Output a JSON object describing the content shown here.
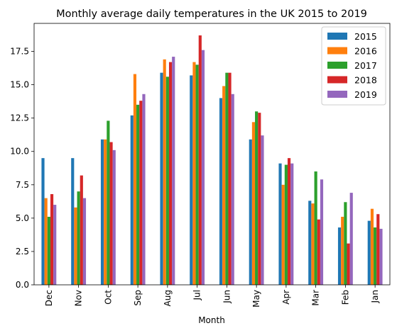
{
  "chart_data": {
    "type": "bar",
    "title": "Monthly average daily temperatures in the UK 2015 to 2019",
    "xlabel": "Month",
    "ylabel": "",
    "ylim": [
      0,
      19.6
    ],
    "yticks": [
      "0.0",
      "2.5",
      "5.0",
      "7.5",
      "10.0",
      "12.5",
      "15.0",
      "17.5"
    ],
    "grid": false,
    "legend_position": "top-right",
    "categories": [
      "Dec",
      "Nov",
      "Oct",
      "Sep",
      "Aug",
      "Jul",
      "Jun",
      "May",
      "Apr",
      "Mar",
      "Feb",
      "Jan"
    ],
    "series": [
      {
        "name": "2015",
        "color": "#1f77b4",
        "values": [
          9.5,
          9.5,
          10.9,
          12.7,
          15.9,
          15.7,
          14.0,
          10.9,
          9.1,
          6.3,
          4.3,
          4.8
        ]
      },
      {
        "name": "2016",
        "color": "#ff7f0e",
        "values": [
          6.5,
          5.8,
          10.9,
          15.8,
          16.9,
          16.7,
          14.9,
          12.2,
          7.5,
          6.1,
          5.1,
          5.7
        ]
      },
      {
        "name": "2017",
        "color": "#2ca02c",
        "values": [
          5.1,
          7.0,
          12.3,
          13.5,
          15.6,
          16.5,
          15.9,
          13.0,
          9.0,
          8.5,
          6.2,
          4.3
        ]
      },
      {
        "name": "2018",
        "color": "#d62728",
        "values": [
          6.8,
          8.2,
          10.7,
          13.8,
          16.7,
          18.7,
          15.9,
          12.9,
          9.5,
          4.9,
          3.1,
          5.3
        ]
      },
      {
        "name": "2019",
        "color": "#9467bd",
        "values": [
          6.0,
          6.5,
          10.1,
          14.3,
          17.1,
          17.6,
          14.3,
          11.2,
          9.1,
          7.9,
          6.9,
          4.2
        ]
      }
    ]
  }
}
